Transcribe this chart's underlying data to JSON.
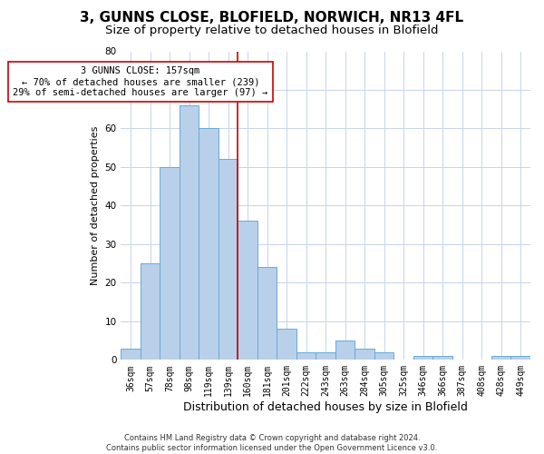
{
  "title_line1": "3, GUNNS CLOSE, BLOFIELD, NORWICH, NR13 4FL",
  "title_line2": "Size of property relative to detached houses in Blofield",
  "xlabel": "Distribution of detached houses by size in Blofield",
  "ylabel": "Number of detached properties",
  "footer_line1": "Contains HM Land Registry data © Crown copyright and database right 2024.",
  "footer_line2": "Contains public sector information licensed under the Open Government Licence v3.0.",
  "categories": [
    "36sqm",
    "57sqm",
    "78sqm",
    "98sqm",
    "119sqm",
    "139sqm",
    "160sqm",
    "181sqm",
    "201sqm",
    "222sqm",
    "243sqm",
    "263sqm",
    "284sqm",
    "305sqm",
    "325sqm",
    "346sqm",
    "366sqm",
    "387sqm",
    "408sqm",
    "428sqm",
    "449sqm"
  ],
  "values": [
    3,
    25,
    50,
    66,
    60,
    52,
    36,
    24,
    8,
    2,
    2,
    5,
    3,
    2,
    0,
    1,
    1,
    0,
    0,
    1,
    1
  ],
  "bar_color": "#b8d0ea",
  "bar_edge_color": "#6aaad4",
  "bar_edge_width": 0.7,
  "vline_color": "#cc0000",
  "vline_linewidth": 1.2,
  "vline_position": 6.5,
  "annotation_text": "3 GUNNS CLOSE: 157sqm\n← 70% of detached houses are smaller (239)\n29% of semi-detached houses are larger (97) →",
  "annotation_box_color": "white",
  "annotation_box_edge": "#cc0000",
  "grid_color": "#c8d4e8",
  "ylim": [
    0,
    80
  ],
  "yticks": [
    0,
    10,
    20,
    30,
    40,
    50,
    60,
    70,
    80
  ],
  "background_color": "white",
  "title_fontsize": 11,
  "subtitle_fontsize": 9.5,
  "xlabel_fontsize": 9,
  "ylabel_fontsize": 8,
  "tick_fontsize": 7,
  "annot_fontsize": 7.5,
  "footer_fontsize": 6
}
